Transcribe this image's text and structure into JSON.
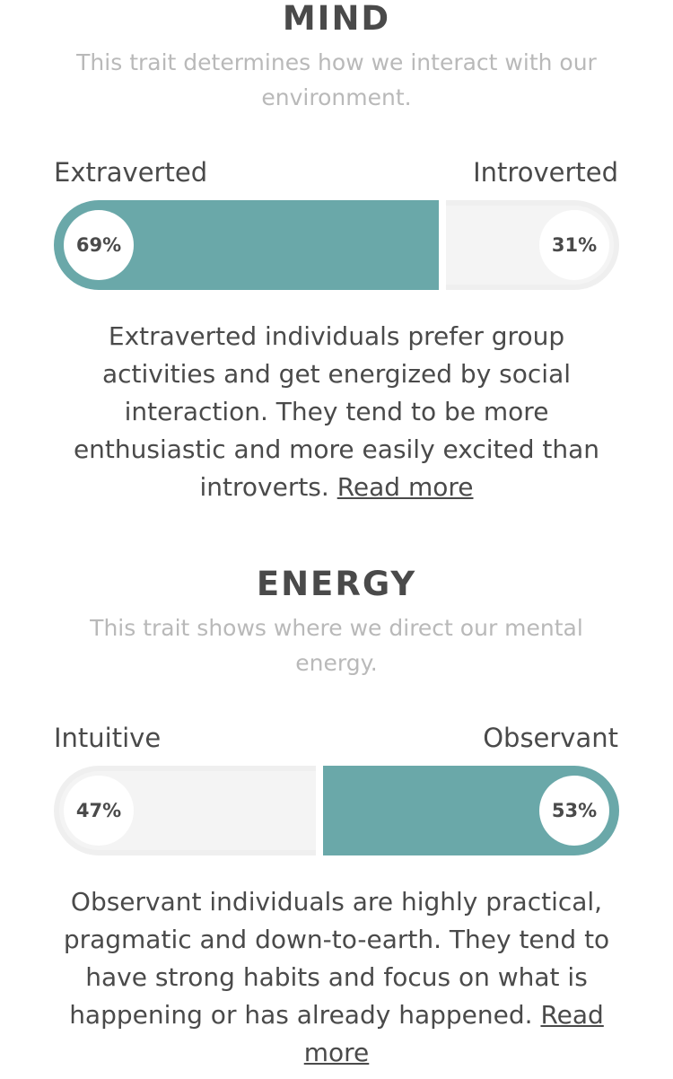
{
  "colors": {
    "accent": "#6aa8a9",
    "track": "#f4f4f4",
    "text": "#4a4a4a",
    "muted": "#b9b9b9"
  },
  "traits": [
    {
      "title": "MIND",
      "subtitle": "This trait determines how we interact with our environment.",
      "left_label": "Extraverted",
      "right_label": "Introverted",
      "left_percent": "69%",
      "right_percent": "31%",
      "left_value": 0.69,
      "right_value": 0.31,
      "dominant": "left",
      "description": "Extraverted individuals prefer group activities and get energized by social interaction. They tend to be more enthusiastic and more easily excited than introverts.",
      "read_more": "Read more"
    },
    {
      "title": "ENERGY",
      "subtitle": "This trait shows where we direct our mental energy.",
      "left_label": "Intuitive",
      "right_label": "Observant",
      "left_percent": "47%",
      "right_percent": "53%",
      "left_value": 0.47,
      "right_value": 0.53,
      "dominant": "right",
      "description": "Observant individuals are highly practical, pragmatic and down-to-earth. They tend to have strong habits and focus on what is happening or has already happened.",
      "read_more": "Read more"
    }
  ]
}
